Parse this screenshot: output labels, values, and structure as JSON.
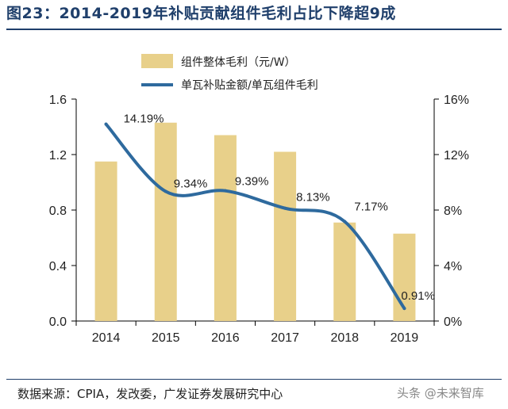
{
  "header": {
    "title": "图23：2014-2019年补贴贡献组件毛利占比下降超9成"
  },
  "footer": {
    "source": "数据来源：CPIA，发改委，广发证券发展研究中心",
    "watermark": "头条 @未来智库"
  },
  "colors": {
    "bar": "#e8d08a",
    "line": "#2e6a9e",
    "title": "#1f3f6b"
  },
  "chart_data": {
    "type": "bar+line",
    "title": "图23：2014-2019年补贴贡献组件毛利占比下降超9成",
    "categories": [
      "2014",
      "2015",
      "2016",
      "2017",
      "2018",
      "2019"
    ],
    "series": [
      {
        "name": "组件整体毛利（元/W）",
        "type": "bar",
        "axis": "left",
        "values": [
          1.15,
          1.43,
          1.34,
          1.22,
          0.71,
          0.63
        ]
      },
      {
        "name": "单瓦补贴金额/单瓦组件毛利",
        "type": "line",
        "axis": "right",
        "values": [
          14.19,
          9.34,
          9.39,
          8.13,
          7.17,
          0.91
        ],
        "labels": [
          "14.19%",
          "9.34%",
          "9.39%",
          "8.13%",
          "7.17%",
          "0.91%"
        ]
      }
    ],
    "y_left": {
      "ylim": [
        0,
        1.6
      ],
      "ticks": [
        "0.0",
        "0.4",
        "0.8",
        "1.2",
        "1.6"
      ]
    },
    "y_right": {
      "ylim": [
        0,
        16
      ],
      "ticks": [
        "0%",
        "4%",
        "8%",
        "12%",
        "16%"
      ]
    },
    "legend": "top-center"
  }
}
